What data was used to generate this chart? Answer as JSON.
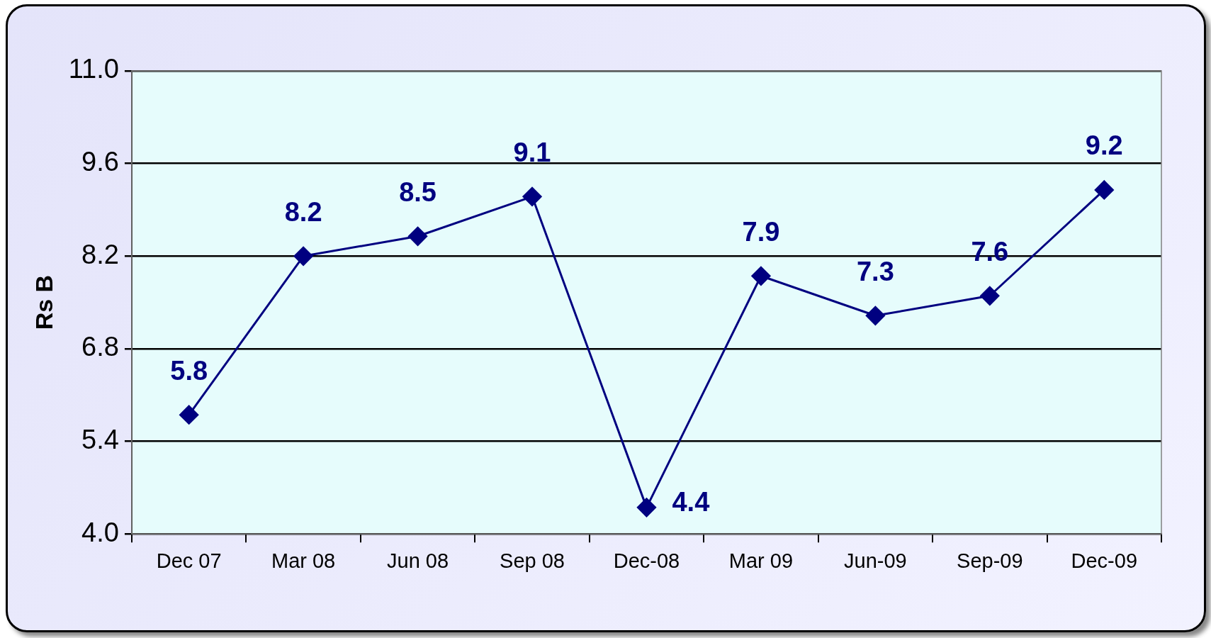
{
  "chart_data": {
    "type": "line",
    "ylabel": "Rs B",
    "categories": [
      "Dec 07",
      "Mar 08",
      "Jun 08",
      "Sep 08",
      "Dec-08",
      "Mar 09",
      "Jun-09",
      "Sep-09",
      "Dec-09"
    ],
    "series": [
      {
        "color": "#000080",
        "values": [
          5.8,
          8.2,
          8.5,
          9.1,
          4.4,
          7.9,
          7.3,
          7.6,
          9.2
        ]
      }
    ],
    "ylim": [
      4.0,
      11.0
    ],
    "yticks": [
      {
        "value": 4.0,
        "label": "4.0"
      },
      {
        "value": 5.4,
        "label": "5.4"
      },
      {
        "value": 6.8,
        "label": "6.8"
      },
      {
        "value": 8.2,
        "label": "8.2"
      },
      {
        "value": 9.6,
        "label": "9.6"
      },
      {
        "value": 11.0,
        "label": "11.0"
      }
    ],
    "grid": "y",
    "legend": false,
    "marker": "diamond",
    "line_style": "solid",
    "data_labels": true
  }
}
